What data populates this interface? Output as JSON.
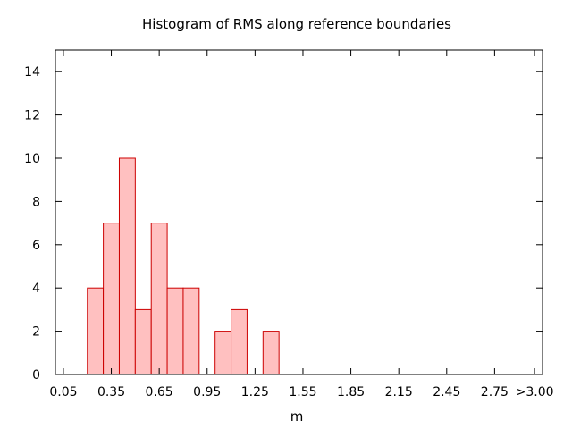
{
  "chart_data": {
    "type": "bar",
    "title": "Histogram of RMS along reference boundaries",
    "xlabel": "m",
    "ylabel": "",
    "bin_width": 0.1,
    "xlim": [
      0.0,
      3.05
    ],
    "ylim": [
      0,
      15
    ],
    "x_ticks": [
      {
        "value": 0.05,
        "label": "0.05"
      },
      {
        "value": 0.35,
        "label": "0.35"
      },
      {
        "value": 0.65,
        "label": "0.65"
      },
      {
        "value": 0.95,
        "label": "0.95"
      },
      {
        "value": 1.25,
        "label": "1.25"
      },
      {
        "value": 1.55,
        "label": "1.55"
      },
      {
        "value": 1.85,
        "label": "1.85"
      },
      {
        "value": 2.15,
        "label": "2.15"
      },
      {
        "value": 2.45,
        "label": "2.45"
      },
      {
        "value": 2.75,
        "label": "2.75"
      },
      {
        "value": 3.0,
        "label": ">3.00"
      }
    ],
    "y_ticks": [
      0,
      2,
      4,
      6,
      8,
      10,
      12,
      14
    ],
    "bins": [
      {
        "center": 0.25,
        "count": 4
      },
      {
        "center": 0.35,
        "count": 7
      },
      {
        "center": 0.45,
        "count": 10
      },
      {
        "center": 0.55,
        "count": 3
      },
      {
        "center": 0.65,
        "count": 7
      },
      {
        "center": 0.75,
        "count": 4
      },
      {
        "center": 0.85,
        "count": 4
      },
      {
        "center": 1.05,
        "count": 2
      },
      {
        "center": 1.15,
        "count": 3
      },
      {
        "center": 1.35,
        "count": 2
      }
    ],
    "bar_fill": "#ffc0c0",
    "bar_stroke": "#cc0000",
    "grid": false,
    "legend": "none"
  }
}
